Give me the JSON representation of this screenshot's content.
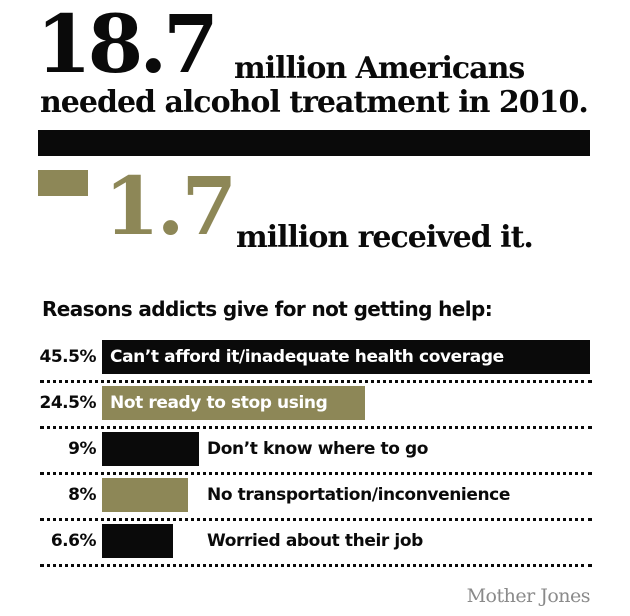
{
  "headline": {
    "big_number": "18.7",
    "line1": "million Americans",
    "line2": "needed alcohol treatment in 2010.",
    "received_number": "1.7",
    "received_text": "million received it."
  },
  "colors": {
    "dark": "#0a0a0a",
    "olive": "#8d8757",
    "white": "#ffffff"
  },
  "chart_data": [
    {
      "type": "bar",
      "categories": [
        "needed alcohol treatment",
        "received it"
      ],
      "values": [
        18.7,
        1.7
      ],
      "title": "",
      "xlabel": "",
      "ylabel": "",
      "xlim": [
        0,
        18.7
      ]
    },
    {
      "type": "bar",
      "orientation": "horizontal",
      "title": "Reasons addicts give for not getting help:",
      "categories": [
        "Can’t afford it/inadequate health coverage",
        "Not ready to stop using",
        "Don’t know where to go",
        "No transportation/inconvenience",
        "Worried about their job"
      ],
      "values": [
        45.5,
        24.5,
        9,
        8,
        6.6
      ],
      "value_labels": [
        "45.5%",
        "24.5%",
        "9%",
        "8%",
        "6.6%"
      ],
      "bar_colors": [
        "#0a0a0a",
        "#8d8757",
        "#0a0a0a",
        "#8d8757",
        "#0a0a0a"
      ],
      "xlim": [
        0,
        45.5
      ],
      "grid": false,
      "legend": "none"
    }
  ],
  "credit": "Mother Jones"
}
